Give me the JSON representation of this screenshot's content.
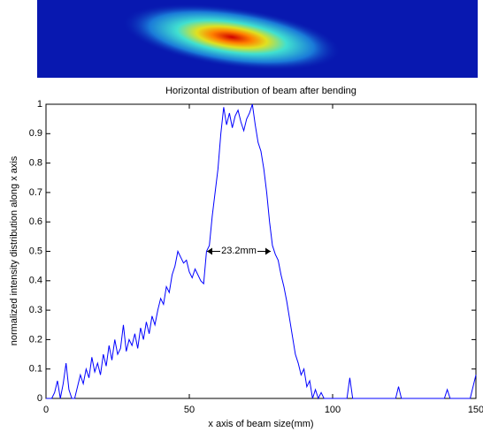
{
  "chart_data": {
    "type": "line",
    "title": "Horizontal distribution of beam after bending",
    "xlabel": "x axis of beam size(mm)",
    "ylabel": "normalized intensity distribution along x axis",
    "annotation": "23.2mm",
    "xlim": [
      0,
      150
    ],
    "xticks": [
      0,
      50,
      100,
      150
    ],
    "ylim": [
      0,
      1
    ],
    "yticks": [
      0,
      0.1,
      0.2,
      0.3,
      0.4,
      0.5,
      0.6,
      0.7,
      0.8,
      0.9,
      1
    ],
    "x": [
      0,
      1,
      2,
      3,
      4,
      5,
      6,
      7,
      8,
      9,
      10,
      11,
      12,
      13,
      14,
      15,
      16,
      17,
      18,
      19,
      20,
      21,
      22,
      23,
      24,
      25,
      26,
      27,
      28,
      29,
      30,
      31,
      32,
      33,
      34,
      35,
      36,
      37,
      38,
      39,
      40,
      41,
      42,
      43,
      44,
      45,
      46,
      47,
      48,
      49,
      50,
      51,
      52,
      53,
      54,
      55,
      56,
      57,
      58,
      59,
      60,
      61,
      62,
      63,
      64,
      65,
      66,
      67,
      68,
      69,
      70,
      71,
      72,
      73,
      74,
      75,
      76,
      77,
      78,
      79,
      80,
      81,
      82,
      83,
      84,
      85,
      86,
      87,
      88,
      89,
      90,
      91,
      92,
      93,
      94,
      95,
      96,
      97,
      98,
      99,
      100,
      101,
      102,
      105,
      106,
      107,
      120,
      122,
      123,
      124,
      139,
      140,
      141,
      148,
      149,
      150
    ],
    "series": [
      {
        "color": "#0000ff",
        "values": [
          0,
          0,
          0,
          0.02,
          0.06,
          0,
          0.05,
          0.12,
          0.03,
          0,
          0,
          0.04,
          0.08,
          0.05,
          0.1,
          0.07,
          0.14,
          0.09,
          0.12,
          0.08,
          0.15,
          0.11,
          0.18,
          0.13,
          0.2,
          0.15,
          0.17,
          0.25,
          0.16,
          0.2,
          0.18,
          0.22,
          0.17,
          0.24,
          0.2,
          0.26,
          0.22,
          0.28,
          0.25,
          0.3,
          0.34,
          0.32,
          0.38,
          0.36,
          0.42,
          0.45,
          0.5,
          0.48,
          0.46,
          0.47,
          0.43,
          0.41,
          0.44,
          0.42,
          0.4,
          0.39,
          0.5,
          0.52,
          0.62,
          0.7,
          0.78,
          0.9,
          0.99,
          0.93,
          0.97,
          0.92,
          0.96,
          0.98,
          0.94,
          0.91,
          0.95,
          0.97,
          1.0,
          0.93,
          0.87,
          0.84,
          0.78,
          0.7,
          0.6,
          0.52,
          0.49,
          0.47,
          0.42,
          0.38,
          0.33,
          0.27,
          0.21,
          0.15,
          0.12,
          0.08,
          0.1,
          0.04,
          0.06,
          0,
          0.03,
          0,
          0.02,
          0,
          0,
          0,
          0,
          0,
          0,
          0,
          0.07,
          0,
          0,
          0,
          0.04,
          0,
          0,
          0.03,
          0,
          0,
          0.04,
          0.08
        ]
      }
    ]
  }
}
